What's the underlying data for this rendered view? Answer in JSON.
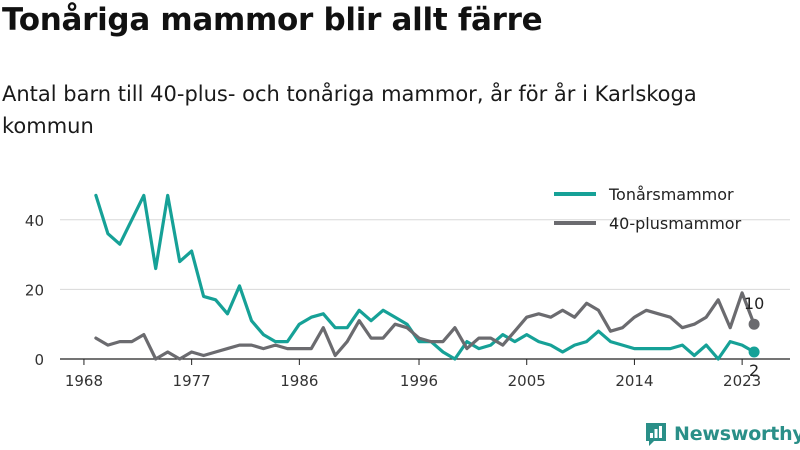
{
  "title": "Tonåriga mammor blir allt färre",
  "subtitle": "Antal barn till 40-plus- och tonåriga mammor, år för år i Karlskoga kommun",
  "brand": "Newsworthy",
  "chart_data": {
    "type": "line",
    "xlim": [
      1966,
      2027
    ],
    "ylim": [
      0,
      50
    ],
    "xticks": [
      1968,
      1977,
      1986,
      1996,
      2005,
      2014,
      2023
    ],
    "xtick_labels": [
      "1968",
      "1977",
      "1986",
      "1996",
      "2005",
      "2014",
      "2023"
    ],
    "yticks": [
      0,
      20,
      40
    ],
    "ytick_labels": [
      "0",
      "20",
      "40"
    ],
    "grid": true,
    "legend_position": "top-right",
    "x": [
      1969,
      1970,
      1971,
      1972,
      1973,
      1974,
      1975,
      1976,
      1977,
      1978,
      1979,
      1980,
      1981,
      1982,
      1983,
      1984,
      1985,
      1986,
      1987,
      1988,
      1989,
      1990,
      1991,
      1992,
      1993,
      1994,
      1995,
      1996,
      1997,
      1998,
      1999,
      2000,
      2001,
      2002,
      2003,
      2004,
      2005,
      2006,
      2007,
      2008,
      2009,
      2010,
      2011,
      2012,
      2013,
      2014,
      2015,
      2016,
      2017,
      2018,
      2019,
      2020,
      2021,
      2022,
      2023,
      2024
    ],
    "series": [
      {
        "name": "Tonårsmammor",
        "color": "#16a197",
        "values": [
          47,
          36,
          33,
          40,
          47,
          26,
          47,
          28,
          31,
          18,
          17,
          13,
          21,
          11,
          7,
          5,
          5,
          10,
          12,
          13,
          9,
          9,
          14,
          11,
          14,
          12,
          10,
          5,
          5,
          2,
          0,
          5,
          3,
          4,
          7,
          5,
          7,
          5,
          4,
          2,
          4,
          5,
          8,
          5,
          4,
          3,
          3,
          3,
          3,
          4,
          1,
          4,
          0,
          5,
          4,
          2
        ],
        "end_label": "2"
      },
      {
        "name": "40-plusmammor",
        "color": "#6b6b6f",
        "values": [
          6,
          4,
          5,
          5,
          7,
          0,
          2,
          0,
          2,
          1,
          2,
          3,
          4,
          4,
          3,
          4,
          3,
          3,
          3,
          9,
          1,
          5,
          11,
          6,
          6,
          10,
          9,
          6,
          5,
          5,
          9,
          3,
          6,
          6,
          4,
          8,
          12,
          13,
          12,
          14,
          12,
          16,
          14,
          8,
          9,
          12,
          14,
          13,
          12,
          9,
          10,
          12,
          17,
          9,
          19,
          10
        ],
        "end_label": "10"
      }
    ]
  }
}
